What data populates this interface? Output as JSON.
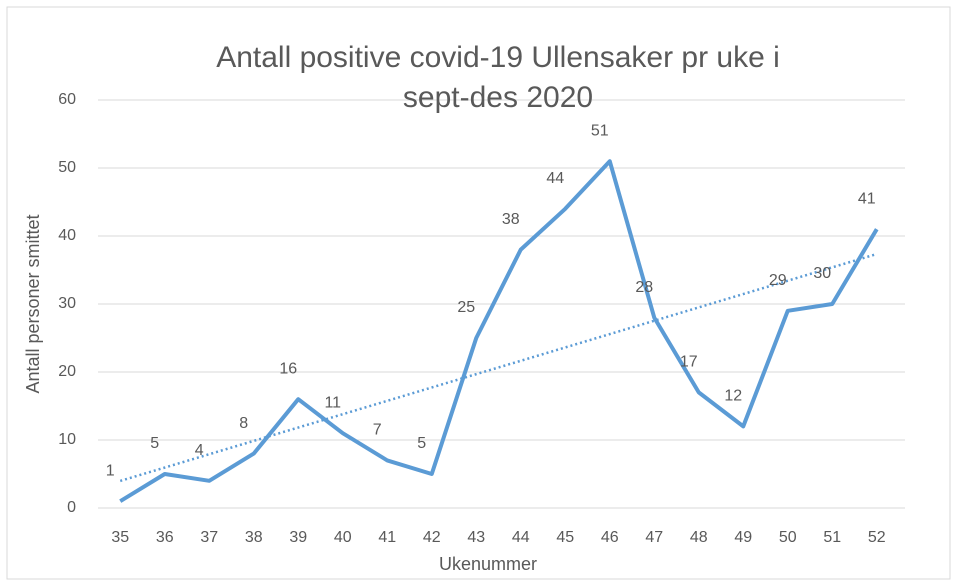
{
  "chart_data": {
    "type": "line",
    "title": "Antall positive covid-19 Ullensaker pr uke i sept-des 2020",
    "x_label": "Ukenummer",
    "y_label": "Antall personer smittet",
    "categories": [
      35,
      36,
      37,
      38,
      39,
      40,
      41,
      42,
      43,
      44,
      45,
      46,
      47,
      48,
      49,
      50,
      51,
      52
    ],
    "series": [
      {
        "name": "Antall positive",
        "color": "#5b9bd5",
        "values": [
          1,
          5,
          4,
          8,
          16,
          11,
          7,
          5,
          25,
          38,
          44,
          51,
          28,
          17,
          12,
          29,
          30,
          41
        ]
      }
    ],
    "trendline": "linear",
    "data_labels": true,
    "ylim": [
      0,
      60
    ],
    "yticks": [
      0,
      10,
      20,
      30,
      40,
      50,
      60
    ],
    "grid": true
  }
}
